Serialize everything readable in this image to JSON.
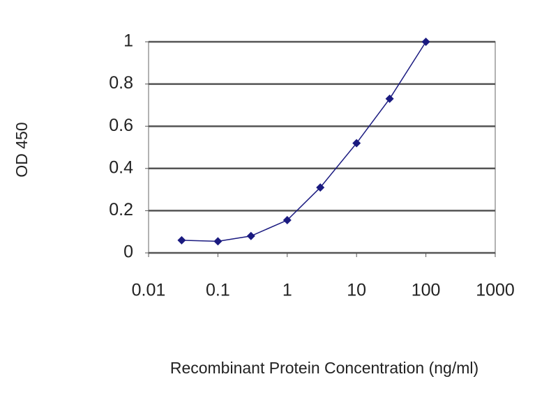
{
  "chart_data": {
    "type": "line",
    "x_label": "Recombinant Protein Concentration (ng/ml)",
    "y_label": "OD 450",
    "x": [
      0.03,
      0.1,
      0.3,
      1,
      3,
      10,
      30,
      100
    ],
    "values": [
      0.06,
      0.055,
      0.08,
      0.155,
      0.31,
      0.52,
      0.73,
      1.0
    ],
    "color": "#1a1a80",
    "x_log": true,
    "xlim": [
      0.01,
      1000
    ],
    "xticks": [
      0.01,
      0.1,
      1,
      10,
      100,
      1000
    ],
    "ylim": [
      0,
      1
    ],
    "yticks": [
      0,
      0.2,
      0.4,
      0.6,
      0.8,
      1
    ],
    "grid": true
  }
}
